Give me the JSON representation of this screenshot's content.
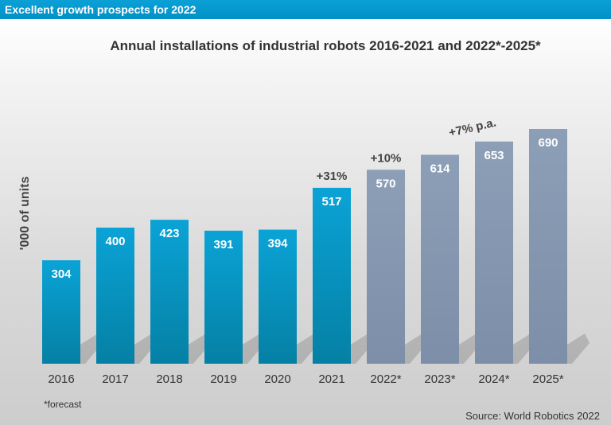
{
  "banner": {
    "title": "Excellent growth prospects for 2022"
  },
  "chart_data": {
    "type": "bar",
    "title": "Annual installations of industrial robots 2016-2021 and 2022*-2025*",
    "xlabel": "",
    "ylabel": "'000 of units",
    "categories": [
      "2016",
      "2017",
      "2018",
      "2019",
      "2020",
      "2021",
      "2022*",
      "2023*",
      "2024*",
      "2025*"
    ],
    "values": [
      304,
      400,
      423,
      391,
      394,
      517,
      570,
      614,
      653,
      690
    ],
    "forecast": [
      false,
      false,
      false,
      false,
      false,
      false,
      true,
      true,
      true,
      true
    ],
    "ylim": [
      0,
      700
    ],
    "grid": false,
    "colors": {
      "actual": "#0a9fd2",
      "actual_dark": "#05809f",
      "forecast": "#8497b0"
    },
    "annotations": {
      "growth_2021": "+31%",
      "growth_2022": "+10%",
      "growth_forecast": "+7% p.a."
    }
  },
  "footnote": "*forecast",
  "source": "Source: World Robotics 2022"
}
